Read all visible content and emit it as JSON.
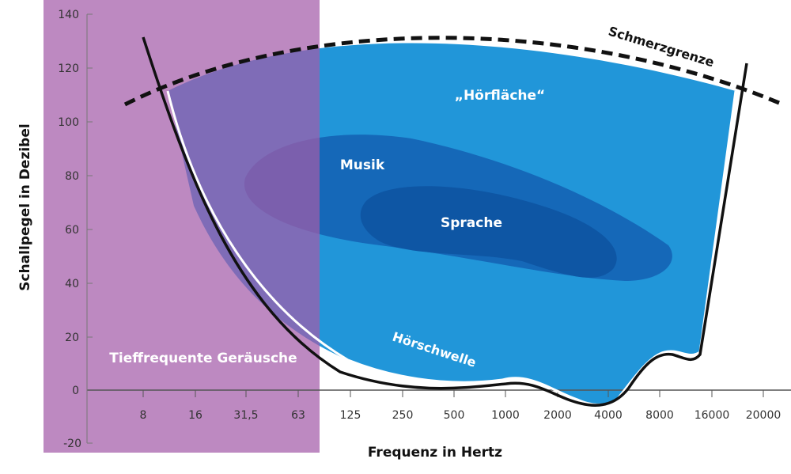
{
  "chart": {
    "ylabel": "Schallpegel in Dezibel",
    "xlabel": "Frequenz in Hertz",
    "y_ticks": [
      "140",
      "120",
      "100",
      "80",
      "60",
      "40",
      "20",
      "0",
      "-20"
    ],
    "x_ticks": [
      "8",
      "16",
      "31,5",
      "63",
      "125",
      "250",
      "500",
      "1000",
      "2000",
      "4000",
      "8000",
      "16000",
      "20000"
    ]
  },
  "labels": {
    "pain_threshold": "Schmerzgrenze",
    "hearing_area": "„Hörfläche“",
    "music": "Musik",
    "speech": "Sprache",
    "hearing_threshold": "Hörschwelle",
    "low_frequency": "Tieffrequente Geräusche"
  },
  "colors": {
    "hearing_area": "#2196d9",
    "music_area": "#1568b8",
    "speech_area": "#0e56a4",
    "low_frequency_band": "#b681bb",
    "curves": "#111111"
  }
}
